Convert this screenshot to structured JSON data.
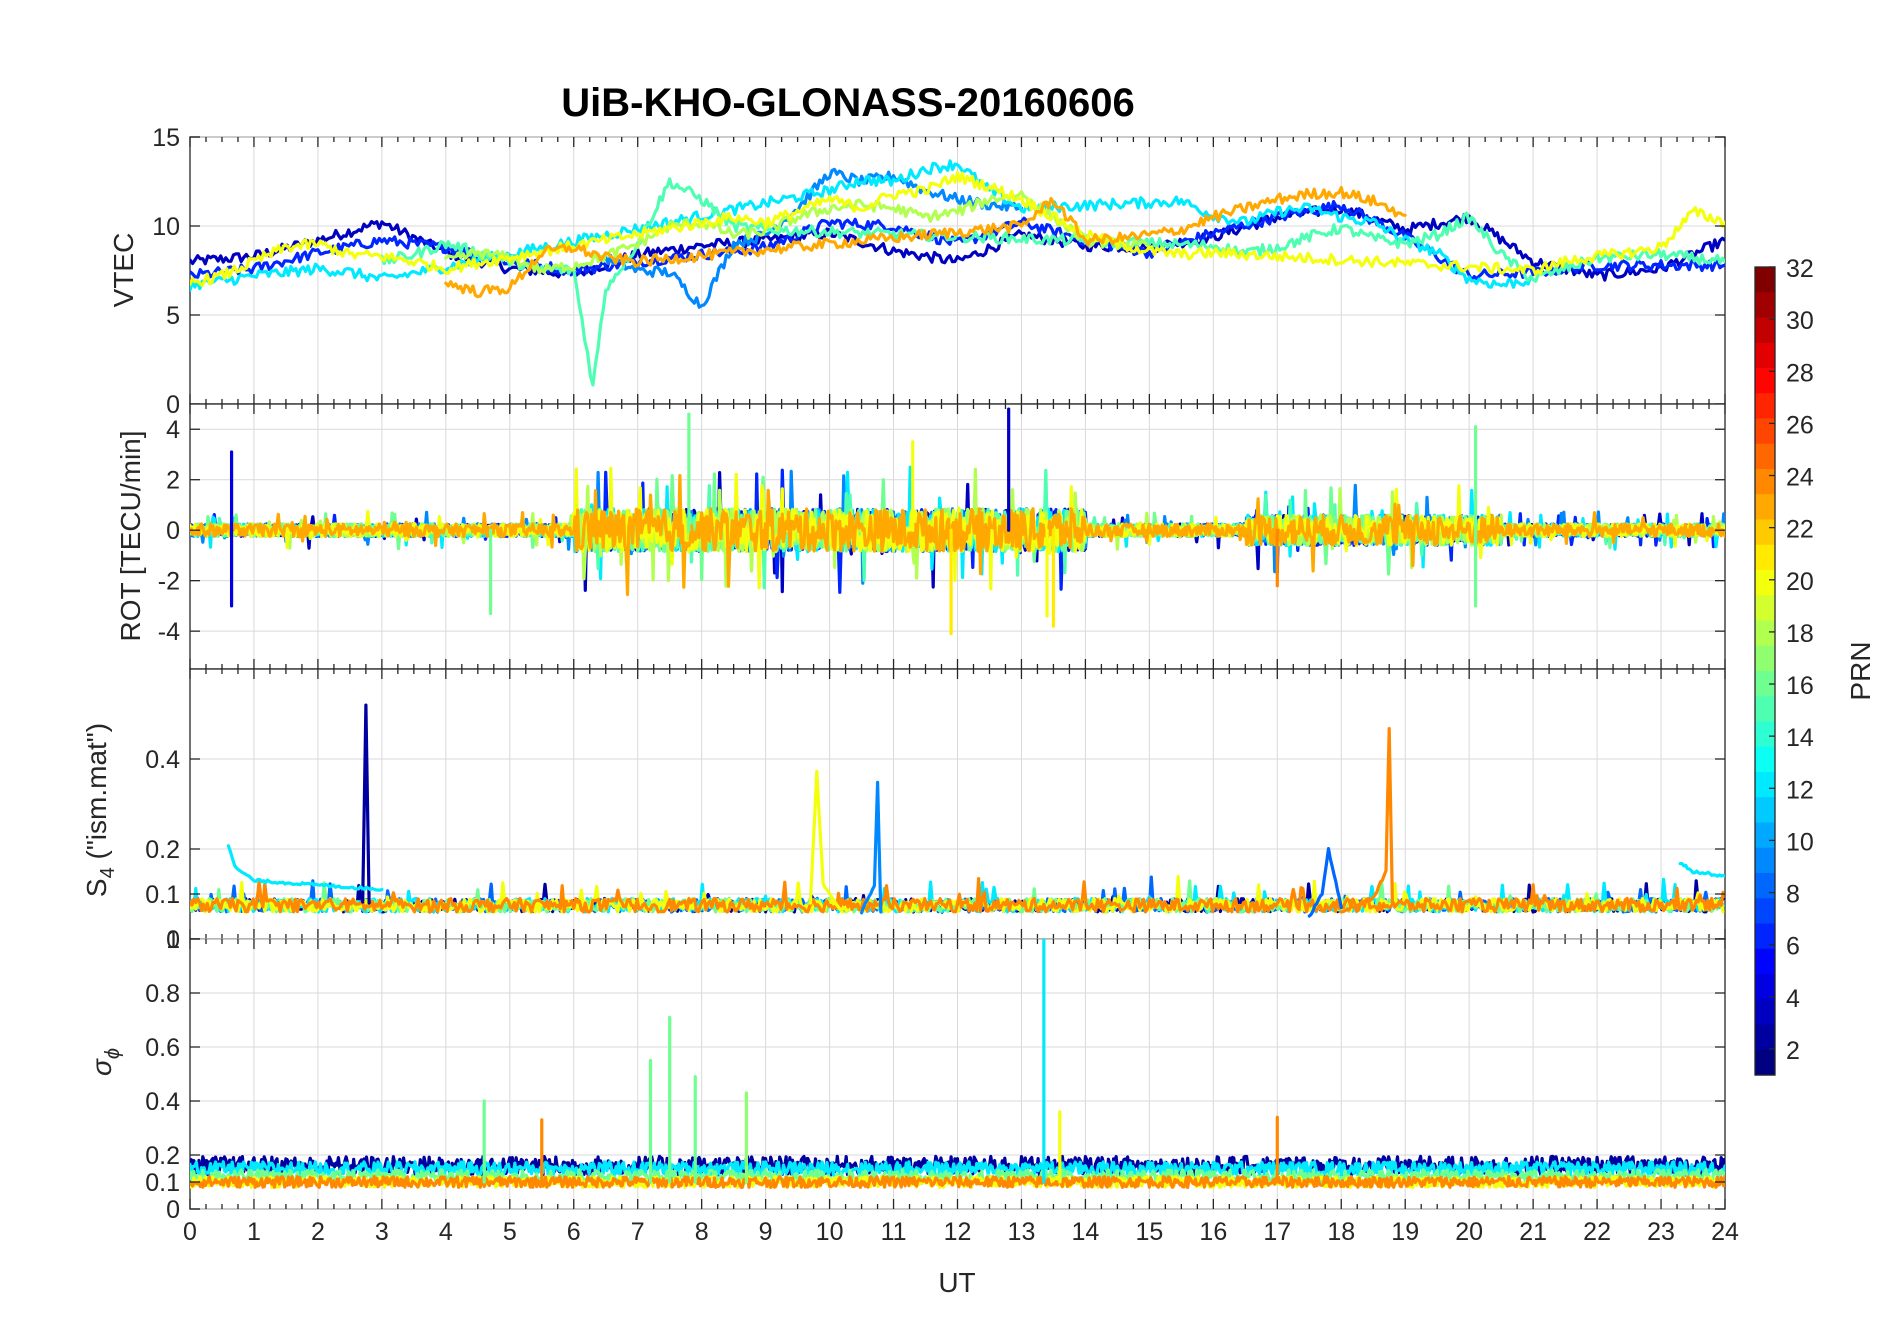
{
  "chart_data": {
    "title": "UiB-KHO-GLONASS-20160606",
    "type": "line",
    "xlabel": "UT",
    "xlim": [
      0,
      24
    ],
    "xticks": [
      "0",
      "1",
      "2",
      "3",
      "4",
      "5",
      "6",
      "7",
      "8",
      "9",
      "10",
      "11",
      "12",
      "13",
      "14",
      "15",
      "16",
      "17",
      "18",
      "19",
      "20",
      "21",
      "22",
      "23",
      "24"
    ],
    "grid": true,
    "panels": [
      {
        "id": "vtec",
        "ylabel": "VTEC",
        "ylim": [
          0,
          15
        ],
        "yticks": [
          "0",
          "5",
          "10",
          "15"
        ],
        "ytick_values": [
          0,
          5,
          10,
          15
        ],
        "series": [
          {
            "prn": 3,
            "x": [
              0,
              1,
              2,
              3,
              4,
              5,
              6,
              7,
              8,
              9,
              10,
              11,
              12,
              13,
              14,
              15,
              16,
              17,
              18,
              19,
              20,
              21,
              22,
              23,
              24
            ],
            "y": [
              8.0,
              8.3,
              9.2,
              10.2,
              8.5,
              7.6,
              7.3,
              8.4,
              8.9,
              9.2,
              9.6,
              8.6,
              8.0,
              9.5,
              8.9,
              8.8,
              9.4,
              10.5,
              11.0,
              9.8,
              10.5,
              8.0,
              7.2,
              7.6,
              9.2
            ]
          },
          {
            "prn": 6,
            "x": [
              0,
              1,
              2,
              3,
              4,
              5,
              6,
              7,
              8,
              9,
              10,
              11,
              12,
              13,
              14,
              15,
              16,
              17,
              18,
              19,
              20,
              21,
              22,
              23,
              24
            ],
            "y": [
              7.2,
              7.6,
              8.5,
              9.2,
              8.8,
              8.0,
              7.5,
              8.0,
              8.4,
              8.8,
              10.2,
              10.0,
              9.0,
              10.2,
              9.2,
              8.5,
              9.6,
              10.5,
              11.2,
              9.4,
              7.2,
              7.4,
              7.8,
              7.8,
              7.8
            ]
          },
          {
            "prn": 9,
            "x": [
              6.5,
              7,
              7.5,
              8,
              8.5,
              9,
              9.5,
              10,
              10.5,
              11,
              11.5,
              12,
              12.5,
              13
            ],
            "y": [
              8.2,
              7.5,
              7.4,
              5.5,
              9.0,
              9.5,
              11.0,
              13.0,
              12.5,
              12.8,
              12.0,
              11.5,
              11.2,
              11.0
            ]
          },
          {
            "prn": 12,
            "x": [
              0,
              0.5,
              1,
              1.5,
              2,
              2.5,
              3,
              10,
              10.5,
              11,
              11.5,
              12,
              12.5,
              13,
              15.5,
              16,
              16.5,
              17,
              17.5,
              18,
              18.5,
              19,
              19.5,
              20,
              20.5,
              21
            ],
            "y": [
              6.7,
              6.9,
              7.2,
              7.4,
              7.6,
              7.4,
              7.0,
              12.0,
              12.6,
              12.5,
              13.2,
              13.5,
              12.0,
              11.0,
              11.4,
              10.6,
              10.2,
              10.8,
              11.0,
              10.5,
              10.2,
              9.2,
              8.5,
              7.0,
              6.7,
              7.0
            ]
          },
          {
            "prn": 15,
            "x": [
              3,
              3.5,
              4,
              4.5,
              5,
              5.5,
              6,
              6.3,
              6.5,
              7,
              7.5,
              8,
              8.5,
              9,
              16,
              16.5,
              17,
              17.5,
              18,
              18.5,
              19,
              19.5,
              20,
              20.5,
              21,
              22,
              23,
              24
            ],
            "y": [
              8.0,
              8.4,
              9.0,
              8.5,
              8.0,
              7.6,
              7.5,
              1.0,
              6.5,
              9.0,
              12.5,
              11.5,
              10.0,
              9.8,
              8.9,
              8.5,
              8.8,
              9.4,
              9.9,
              9.3,
              9.0,
              9.5,
              10.5,
              8.4,
              7.0,
              8.2,
              8.4,
              8.0
            ]
          },
          {
            "prn": 18,
            "x": [
              4,
              4.5,
              5,
              5.5,
              6,
              6.5,
              7,
              7.5,
              8,
              8.5,
              9,
              9.5,
              10,
              10.5,
              11,
              11.5,
              12,
              12.5,
              13,
              13.5,
              14,
              14.5,
              15
            ],
            "y": [
              8.0,
              8.5,
              8.2,
              7.5,
              7.8,
              8.3,
              9.0,
              10.0,
              10.2,
              9.5,
              9.7,
              10.5,
              11.0,
              11.2,
              11.0,
              10.5,
              10.8,
              11.5,
              11.8,
              10.5,
              9.2,
              9.0,
              8.8
            ]
          },
          {
            "prn": 20,
            "x": [
              0,
              0.5,
              1,
              1.5,
              2,
              2.5,
              3,
              3.5,
              4,
              8.5,
              9,
              9.5,
              10,
              10.5,
              11,
              11.5,
              12,
              12.5,
              13,
              13.5,
              14,
              14.5,
              15,
              15.5,
              16,
              21,
              21.5,
              22,
              22.5,
              23,
              23.5,
              24
            ],
            "y": [
              6.8,
              7.2,
              8.0,
              8.8,
              9.0,
              8.4,
              8.3,
              8.0,
              7.6,
              10.5,
              10.2,
              10.8,
              11.5,
              11.0,
              11.8,
              12.0,
              12.8,
              12.2,
              11.5,
              10.5,
              9.5,
              9.0,
              8.6,
              8.4,
              8.5,
              7.5,
              8.0,
              8.3,
              8.5,
              8.8,
              10.8,
              10.2
            ]
          },
          {
            "prn": 23,
            "x": [
              4,
              4.5,
              5,
              5.5,
              6,
              6.5,
              7,
              13,
              13.5,
              14,
              14.5,
              15,
              15.5,
              16,
              16.5,
              17,
              17.5,
              18,
              18.5,
              19
            ],
            "y": [
              6.8,
              6.3,
              6.5,
              8.5,
              8.8,
              8.2,
              8.0,
              10.0,
              11.5,
              9.2,
              9.3,
              9.5,
              9.8,
              10.5,
              11.0,
              11.5,
              11.8,
              11.9,
              11.4,
              10.6
            ]
          }
        ]
      },
      {
        "id": "rot",
        "ylabel": "ROT [TECU/min]",
        "ylim": [
          -5.5,
          5
        ],
        "yticks": [
          "-4",
          "-2",
          "0",
          "2",
          "4"
        ],
        "ytick_values": [
          -4,
          -2,
          0,
          2,
          4
        ],
        "notable_spikes": [
          {
            "prn": 3,
            "x": 12.8,
            "y": 4.8
          },
          {
            "prn": 21,
            "x": 11.9,
            "y": -4.1
          },
          {
            "prn": 21,
            "x": 13.5,
            "y": -3.8
          },
          {
            "prn": 16,
            "x": 7.8,
            "y": 4.6
          },
          {
            "prn": 16,
            "x": 20.1,
            "y": 4.1
          },
          {
            "prn": 16,
            "x": 20.1,
            "y": -3.0
          },
          {
            "prn": 4,
            "x": 0.65,
            "y": 3.1
          },
          {
            "prn": 4,
            "x": 0.65,
            "y": -3.0
          },
          {
            "prn": 20,
            "x": 11.3,
            "y": 3.5
          },
          {
            "prn": 20,
            "x": 13.4,
            "y": -3.4
          },
          {
            "prn": 24,
            "x": 17.0,
            "y": -2.2
          },
          {
            "prn": 16,
            "x": 4.7,
            "y": -3.3
          }
        ]
      },
      {
        "id": "s4",
        "ylabel": "S4 (\"ism.mat\")",
        "ylim": [
          0,
          0.6
        ],
        "yticks": [
          "0",
          "0.1",
          "0.2",
          "0.4"
        ],
        "ytick_values": [
          0,
          0.1,
          0.2,
          0.4
        ],
        "series": [
          {
            "prn": 2,
            "x": [
              2.7,
              2.75,
              2.8
            ],
            "y": [
              0.08,
              0.52,
              0.08
            ]
          },
          {
            "prn": 24,
            "x": [
              18.0,
              18.5,
              18.7,
              18.75,
              18.8
            ],
            "y": [
              0.06,
              0.09,
              0.15,
              0.47,
              0.08
            ]
          },
          {
            "prn": 20,
            "x": [
              9.7,
              9.8,
              9.9,
              10.2
            ],
            "y": [
              0.08,
              0.37,
              0.12,
              0.06
            ]
          },
          {
            "prn": 9,
            "x": [
              10.5,
              10.7,
              10.75,
              10.8
            ],
            "y": [
              0.06,
              0.12,
              0.35,
              0.06
            ]
          },
          {
            "prn": 12,
            "x": [
              0.6,
              0.7,
              1.0,
              2.0,
              3.0
            ],
            "y": [
              0.21,
              0.16,
              0.13,
              0.12,
              0.11
            ]
          },
          {
            "prn": 12,
            "x": [
              23.3,
              23.5,
              24
            ],
            "y": [
              0.17,
              0.15,
              0.14
            ]
          },
          {
            "prn": 8,
            "x": [
              17.5,
              17.7,
              17.8,
              18.0
            ],
            "y": [
              0.05,
              0.1,
              0.2,
              0.07
            ]
          }
        ]
      },
      {
        "id": "sigma_phi",
        "ylabel": "σφ",
        "ylim": [
          0,
          1
        ],
        "yticks": [
          "0",
          "0.1",
          "0.2",
          "0.4",
          "0.6",
          "0.8",
          "1"
        ],
        "ytick_values": [
          0,
          0.1,
          0.2,
          0.4,
          0.6,
          0.8,
          1
        ],
        "notable_spikes": [
          {
            "prn": 12,
            "x": 13.35,
            "y": 1.0
          },
          {
            "prn": 16,
            "x": 7.5,
            "y": 0.71
          },
          {
            "prn": 16,
            "x": 7.2,
            "y": 0.55
          },
          {
            "prn": 16,
            "x": 7.9,
            "y": 0.49
          },
          {
            "prn": 17,
            "x": 8.7,
            "y": 0.43
          },
          {
            "prn": 16,
            "x": 4.6,
            "y": 0.4
          },
          {
            "prn": 24,
            "x": 5.5,
            "y": 0.33
          },
          {
            "prn": 24,
            "x": 17.0,
            "y": 0.34
          },
          {
            "prn": 20,
            "x": 13.6,
            "y": 0.36
          }
        ]
      }
    ],
    "colorbar": {
      "label": "PRN",
      "range": [
        1,
        32
      ],
      "ticks": [
        "2",
        "4",
        "6",
        "8",
        "10",
        "12",
        "14",
        "16",
        "18",
        "20",
        "22",
        "24",
        "26",
        "28",
        "30",
        "32"
      ],
      "tick_values": [
        2,
        4,
        6,
        8,
        10,
        12,
        14,
        16,
        18,
        20,
        22,
        24,
        26,
        28,
        30,
        32
      ],
      "colormap": "jet"
    }
  }
}
